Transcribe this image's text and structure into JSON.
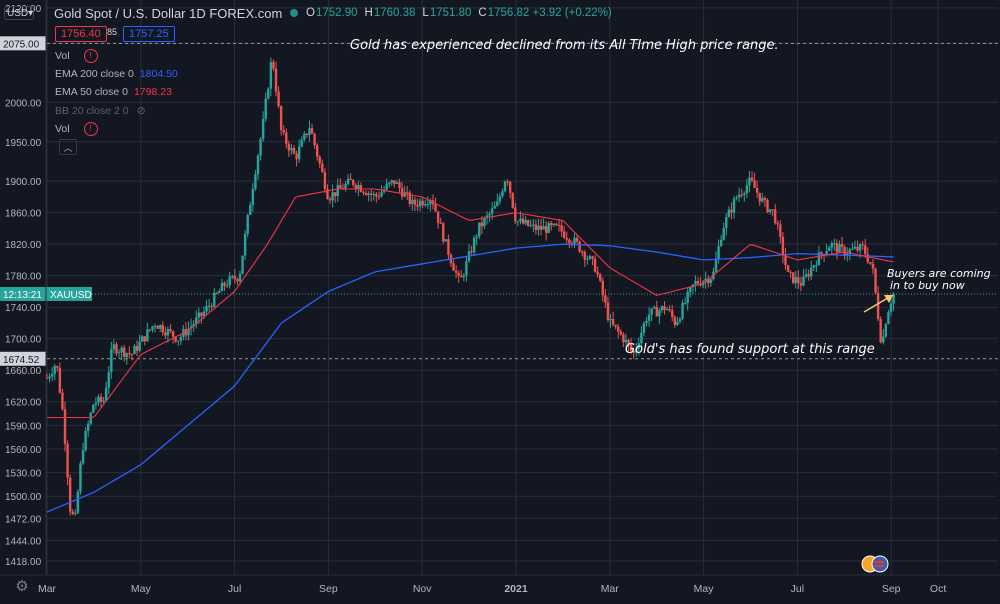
{
  "header": {
    "symbol_title": "Gold Spot / U.S. Dollar  1D  FOREX.com",
    "ohlc": [
      {
        "key": "O",
        "value": "1752.90"
      },
      {
        "key": "H",
        "value": "1760.38"
      },
      {
        "key": "L",
        "value": "1751.80"
      },
      {
        "key": "C",
        "value": "1756.82 +3.92 (+0.22%)"
      }
    ],
    "currency": "USD",
    "sell_price": "1756.40",
    "spread": "85",
    "buy_price": "1757.25"
  },
  "legend": {
    "vol1": "Vol",
    "ema200_label": "EMA 200 close 0",
    "ema200_value": "1804.50",
    "ema50_label": "EMA 50 close 0",
    "ema50_value": "1798.23",
    "bb_label": "BB 20 close 2 0",
    "vol2": "Vol"
  },
  "annotations": {
    "top": "Gold has experienced declined from its All TIme High price range.",
    "support": "Gold's has found support at this range",
    "buyers_line1": "Buyers are coming",
    "buyers_line2": "in to buy now"
  },
  "colors": {
    "background": "#131722",
    "up": "#26a69a",
    "down": "#ef5350",
    "ema200": "#2962ff",
    "ema50": "#f23645",
    "grid": "#2a2e39",
    "arrow": "#f5c96a"
  },
  "icons": [
    "warning-icon",
    "eye-off-icon",
    "chevron-up-icon",
    "gear-icon",
    "flag-icon"
  ],
  "chart_data": {
    "type": "candlestick",
    "price_axis_ticks": [
      2120,
      2075,
      2000,
      1950,
      1900,
      1860,
      1820,
      1780,
      1740,
      1700,
      1660,
      1620,
      1590,
      1560,
      1530,
      1500,
      1472,
      1444,
      1418
    ],
    "price_axis_labels": [
      "2120.00",
      "2075.00",
      "2000.00",
      "1950.00",
      "1900.00",
      "1860.00",
      "1820.00",
      "1780.00",
      "1740.00",
      "1700.00",
      "1660.00",
      "1620.00",
      "1590.00",
      "1560.00",
      "1530.00",
      "1500.00",
      "1472.00",
      "1444.00",
      "1418.00"
    ],
    "time_axis_labels": [
      "Mar",
      "May",
      "Jul",
      "Sep",
      "Nov",
      "2021",
      "Mar",
      "May",
      "Jul",
      "Sep",
      "Oct"
    ],
    "time_axis_months": [
      0,
      2,
      4,
      6,
      8,
      10,
      12,
      14,
      16,
      18,
      19
    ],
    "ylim": [
      1400,
      2130
    ],
    "current_price_label": "12:13:21",
    "current_symbol_label": "XAUUSD",
    "current_price": 1756.82,
    "ath_price": 2075,
    "ath_label": "2075.00",
    "support_price": 1674.52,
    "support_label": "1674.52",
    "months_span": 20,
    "price_path": [
      [
        0,
        1650
      ],
      [
        0.2,
        1670
      ],
      [
        0.35,
        1600
      ],
      [
        0.5,
        1480
      ],
      [
        0.6,
        1470
      ],
      [
        0.75,
        1560
      ],
      [
        1.0,
        1620
      ],
      [
        1.2,
        1620
      ],
      [
        1.4,
        1690
      ],
      [
        1.8,
        1680
      ],
      [
        2.3,
        1720
      ],
      [
        2.8,
        1700
      ],
      [
        3.3,
        1730
      ],
      [
        3.8,
        1770
      ],
      [
        4.1,
        1780
      ],
      [
        4.4,
        1900
      ],
      [
        4.6,
        1970
      ],
      [
        4.8,
        2060
      ],
      [
        5.0,
        1960
      ],
      [
        5.3,
        1930
      ],
      [
        5.6,
        1970
      ],
      [
        6.0,
        1880
      ],
      [
        6.5,
        1900
      ],
      [
        7.0,
        1880
      ],
      [
        7.4,
        1900
      ],
      [
        7.8,
        1870
      ],
      [
        8.2,
        1880
      ],
      [
        8.5,
        1820
      ],
      [
        8.8,
        1770
      ],
      [
        9.2,
        1840
      ],
      [
        9.6,
        1870
      ],
      [
        9.8,
        1910
      ],
      [
        10.0,
        1850
      ],
      [
        10.4,
        1840
      ],
      [
        10.9,
        1840
      ],
      [
        11.3,
        1820
      ],
      [
        11.7,
        1790
      ],
      [
        12.0,
        1720
      ],
      [
        12.3,
        1700
      ],
      [
        12.5,
        1680
      ],
      [
        12.8,
        1730
      ],
      [
        13.2,
        1740
      ],
      [
        13.4,
        1720
      ],
      [
        13.8,
        1770
      ],
      [
        14.2,
        1780
      ],
      [
        14.4,
        1840
      ],
      [
        14.7,
        1880
      ],
      [
        15.0,
        1900
      ],
      [
        15.3,
        1870
      ],
      [
        15.5,
        1860
      ],
      [
        15.8,
        1780
      ],
      [
        16.1,
        1770
      ],
      [
        16.4,
        1800
      ],
      [
        16.7,
        1820
      ],
      [
        17.0,
        1810
      ],
      [
        17.4,
        1815
      ],
      [
        17.6,
        1790
      ],
      [
        17.7,
        1740
      ],
      [
        17.8,
        1690
      ],
      [
        17.9,
        1730
      ],
      [
        18.0,
        1750
      ],
      [
        18.05,
        1757
      ]
    ],
    "ema50_path": [
      [
        0,
        1600
      ],
      [
        1,
        1600
      ],
      [
        2,
        1680
      ],
      [
        3,
        1710
      ],
      [
        4,
        1760
      ],
      [
        4.7,
        1820
      ],
      [
        5.3,
        1880
      ],
      [
        6.2,
        1890
      ],
      [
        7,
        1890
      ],
      [
        8,
        1880
      ],
      [
        9,
        1850
      ],
      [
        10,
        1860
      ],
      [
        11,
        1850
      ],
      [
        12,
        1790
      ],
      [
        13,
        1755
      ],
      [
        14,
        1770
      ],
      [
        15,
        1820
      ],
      [
        16,
        1800
      ],
      [
        17,
        1810
      ],
      [
        18,
        1798
      ]
    ],
    "ema200_path": [
      [
        0,
        1480
      ],
      [
        1,
        1505
      ],
      [
        2,
        1540
      ],
      [
        3,
        1590
      ],
      [
        4,
        1640
      ],
      [
        5,
        1720
      ],
      [
        6,
        1760
      ],
      [
        7,
        1785
      ],
      [
        8,
        1795
      ],
      [
        9,
        1805
      ],
      [
        10,
        1815
      ],
      [
        11,
        1820
      ],
      [
        12,
        1818
      ],
      [
        13,
        1810
      ],
      [
        14,
        1800
      ],
      [
        15,
        1803
      ],
      [
        16,
        1808
      ],
      [
        17,
        1806
      ],
      [
        18,
        1804
      ]
    ]
  }
}
